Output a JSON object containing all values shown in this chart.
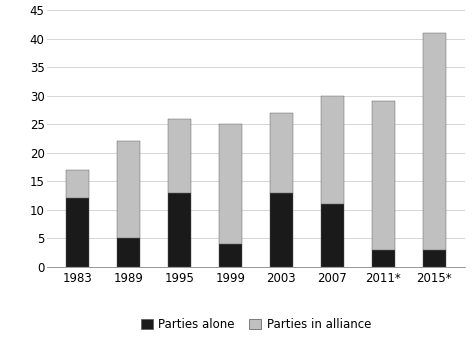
{
  "categories": [
    "1983",
    "1989",
    "1995",
    "1999",
    "2003",
    "2007",
    "2011*",
    "2015*"
  ],
  "parties_alone": [
    12,
    5,
    13,
    4,
    13,
    11,
    3,
    3
  ],
  "parties_in_alliance": [
    5,
    17,
    13,
    21,
    14,
    19,
    26,
    38
  ],
  "color_alone": "#1a1a1a",
  "color_alliance": "#c0c0c0",
  "ylim": [
    0,
    45
  ],
  "yticks": [
    0,
    5,
    10,
    15,
    20,
    25,
    30,
    35,
    40,
    45
  ],
  "legend_alone": "Parties alone",
  "legend_alliance": "Parties in alliance",
  "background_color": "#ffffff",
  "bar_width": 0.45,
  "edge_color": "#555555"
}
